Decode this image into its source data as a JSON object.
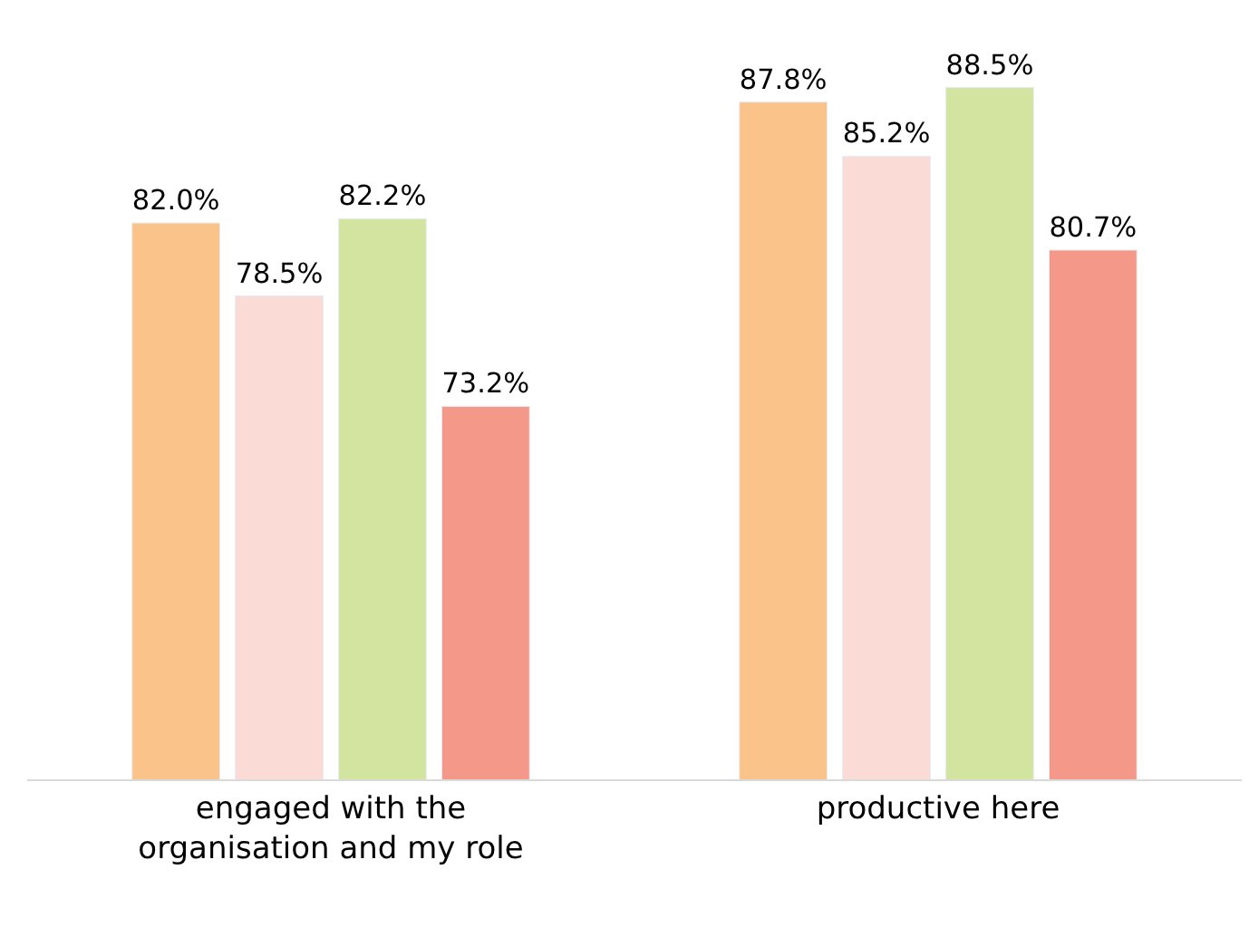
{
  "chart_data": {
    "type": "bar",
    "categories": [
      "engaged with the organisation and my role",
      "productive here"
    ],
    "series": [
      {
        "color": "#f9c38a",
        "values": [
          82.0,
          87.8
        ],
        "value_labels": [
          "82.0%",
          "87.8%"
        ]
      },
      {
        "color": "#fadbd5",
        "values": [
          78.5,
          85.2
        ],
        "value_labels": [
          "78.5%",
          "85.2%"
        ]
      },
      {
        "color": "#d3e4a0",
        "values": [
          82.2,
          88.5
        ],
        "value_labels": [
          "82.2%",
          "88.5%"
        ]
      },
      {
        "color": "#f4998a",
        "values": [
          73.2,
          80.7
        ],
        "value_labels": [
          "73.2%",
          "80.7%"
        ]
      }
    ],
    "ylim": [
      55.3,
      92.7
    ],
    "tick_labels": "x"
  }
}
